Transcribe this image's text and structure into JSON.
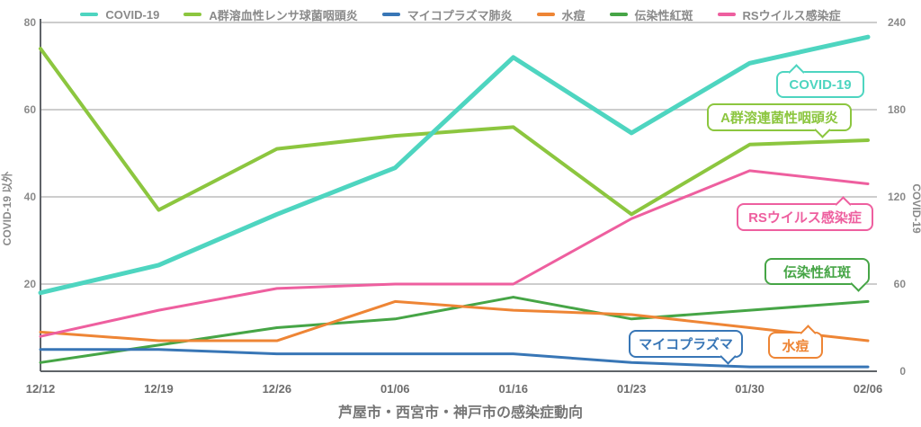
{
  "title": "芦屋市・西宮市・神戸市の感染症動向",
  "legend": {
    "items": [
      {
        "label": "COVID-19",
        "color": "#4ED5C0"
      },
      {
        "label": "A群溶血性レンサ球菌咽頭炎",
        "color": "#8CC63F"
      },
      {
        "label": "マイコプラズマ肺炎",
        "color": "#3876B6"
      },
      {
        "label": "水痘",
        "color": "#EE8535"
      },
      {
        "label": "伝染性紅斑",
        "color": "#46A546"
      },
      {
        "label": "RSウイルス感染症",
        "color": "#EE5F9F"
      }
    ]
  },
  "chart_data": {
    "type": "line",
    "title": "芦屋市・西宮市・神戸市の感染症動向",
    "x_labels": [
      "12/12",
      "12/19",
      "12/26",
      "01/06",
      "01/16",
      "01/23",
      "01/30",
      "02/06"
    ],
    "grid": true,
    "legend_position": "top",
    "left_axis": {
      "label": "COVID-19 以外",
      "ticks": [
        80,
        60,
        40,
        20
      ],
      "range": [
        0,
        80
      ],
      "color": "#8a8a8a"
    },
    "right_axis": {
      "label": "COVID-19",
      "ticks": [
        240,
        180,
        120,
        60,
        0
      ],
      "range": [
        0,
        240
      ],
      "color": "#8a8a8a"
    },
    "series": [
      {
        "name": "COVID-19",
        "axis": "right",
        "color": "#4ED5C0",
        "width": 5,
        "values": [
          54,
          73,
          108,
          140,
          216,
          164,
          212,
          230
        ]
      },
      {
        "name": "A群溶血性レンサ球菌咽頭炎",
        "axis": "left",
        "color": "#8CC63F",
        "width": 4,
        "values": [
          74,
          37,
          51,
          54,
          56,
          36,
          52,
          53
        ]
      },
      {
        "name": "マイコプラズマ肺炎",
        "axis": "left",
        "color": "#3876B6",
        "width": 3,
        "values": [
          5,
          5,
          4,
          4,
          4,
          2,
          1,
          1
        ]
      },
      {
        "name": "水痘",
        "axis": "left",
        "color": "#EE8535",
        "width": 3,
        "values": [
          9,
          7,
          7,
          16,
          14,
          13,
          10,
          7
        ]
      },
      {
        "name": "伝染性紅斑",
        "axis": "left",
        "color": "#46A546",
        "width": 3,
        "values": [
          2,
          6,
          10,
          12,
          17,
          12,
          14,
          16
        ]
      },
      {
        "name": "RSウイルス感染症",
        "axis": "left",
        "color": "#EE5F9F",
        "width": 3,
        "values": [
          8,
          14,
          19,
          20,
          20,
          35,
          46,
          43
        ]
      }
    ]
  },
  "annotations": [
    {
      "id": "covid",
      "label": "COVID-19",
      "color": "#4ED5C0"
    },
    {
      "id": "strep",
      "label": "A群溶連菌性咽頭炎",
      "color": "#8CC63F"
    },
    {
      "id": "rs",
      "label": "RSウイルス感染症",
      "color": "#EE5F9F"
    },
    {
      "id": "erythema",
      "label": "伝染性紅斑",
      "color": "#46A546"
    },
    {
      "id": "mycoplasma",
      "label": "マイコプラズマ",
      "color": "#3876B6"
    },
    {
      "id": "varicella",
      "label": "水痘",
      "color": "#EE8535"
    }
  ]
}
